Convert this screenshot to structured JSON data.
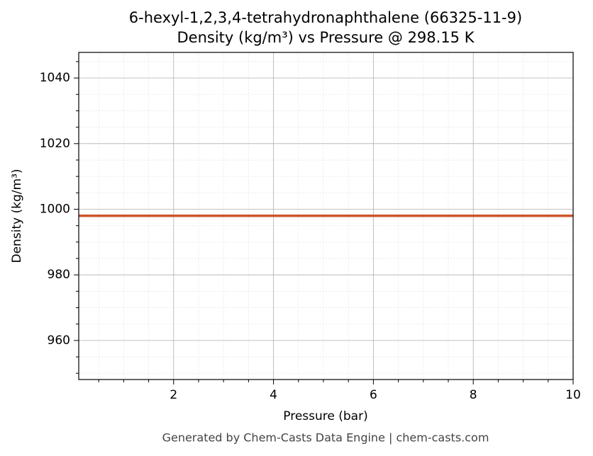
{
  "chart_data": {
    "type": "line",
    "title": "6-hexyl-1,2,3,4-tetrahydronaphthalene (66325-11-9)",
    "subtitle": "Density (kg/m³) vs Pressure @ 298.15 K",
    "x_label": "Pressure (bar)",
    "y_label": "Density (kg/m³)",
    "footer": "Generated by Chem-Casts Data Engine | chem-casts.com",
    "x": [
      0.1,
      10
    ],
    "series": [
      {
        "name": "Density",
        "color": "#cc5529",
        "values": [
          998,
          998
        ]
      }
    ],
    "xlim": [
      0.1,
      10
    ],
    "ylim": [
      948.1,
      1047.8
    ],
    "xticks": [
      2,
      4,
      6,
      8,
      10
    ],
    "yticks": [
      960,
      980,
      1000,
      1020,
      1040
    ],
    "xminorticks": [
      0.5,
      1,
      1.5,
      2.5,
      3,
      3.5,
      4.5,
      5,
      5.5,
      6.5,
      7,
      7.5,
      8.5,
      9,
      9.5
    ],
    "yminorticks": [
      950,
      955,
      965,
      970,
      975,
      985,
      990,
      995,
      1005,
      1010,
      1015,
      1025,
      1030,
      1035,
      1045
    ],
    "grid": true
  }
}
